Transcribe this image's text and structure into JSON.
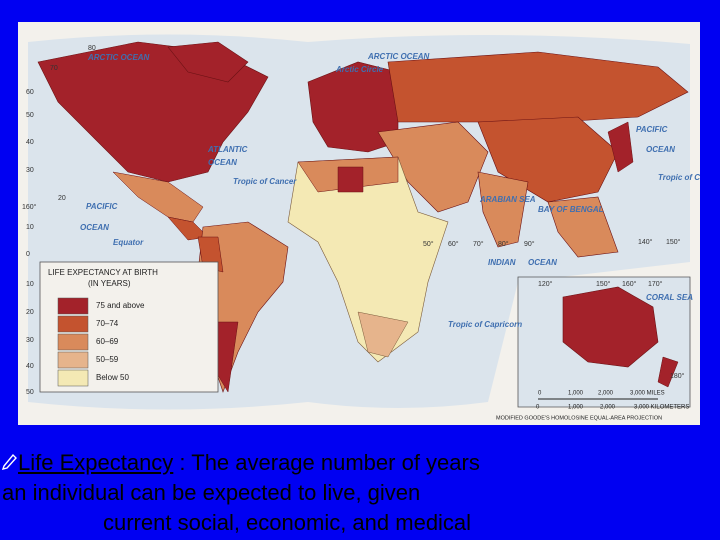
{
  "map": {
    "labels": [
      "ARCTIC OCEAN",
      "ARCTIC OCEAN",
      "Arctic Circle",
      "ATLANTIC",
      "OCEAN",
      "Tropic of Cancer",
      "PACIFIC",
      "OCEAN",
      "Equator",
      "ARABIAN SEA",
      "BAY OF BENGAL",
      "INDIAN",
      "OCEAN",
      "PACIFIC",
      "OCEAN",
      "Tropic of Cancer",
      "Tropic of Capricorn",
      "CORAL SEA"
    ],
    "grid_labels": [
      "80",
      "70",
      "60",
      "50",
      "40",
      "30",
      "20",
      "10",
      "0",
      "10",
      "20",
      "30",
      "40",
      "50",
      "160°",
      "50°",
      "60°",
      "70°",
      "80°",
      "90°",
      "140°",
      "150°",
      "120°",
      "150°",
      "160°",
      "170°",
      "180°"
    ],
    "legend": {
      "title": "LIFE EXPECTANCY AT BIRTH",
      "subtitle": "(IN YEARS)",
      "items": [
        {
          "label": "75 and above",
          "color": "#a3222a"
        },
        {
          "label": "70–74",
          "color": "#c4532f"
        },
        {
          "label": "60–69",
          "color": "#d98a5b"
        },
        {
          "label": "50–59",
          "color": "#e6b48c"
        },
        {
          "label": "Below 50",
          "color": "#f4e9b4"
        }
      ]
    },
    "scale": {
      "miles": [
        "0",
        "1,000",
        "2,000",
        "3,000 MILES"
      ],
      "kilometers": [
        "0",
        "1,000",
        "2,000",
        "3,000 KILOMETERS"
      ]
    },
    "projection": "MODIFIED GOODE'S HOMOLOSINE EQUAL-AREA PROJECTION"
  },
  "caption": {
    "term": "Life Expectancy",
    "lines": [
      " : The average number of years",
      "an individual can be expected to live, given",
      "current social, economic, and medical"
    ]
  }
}
